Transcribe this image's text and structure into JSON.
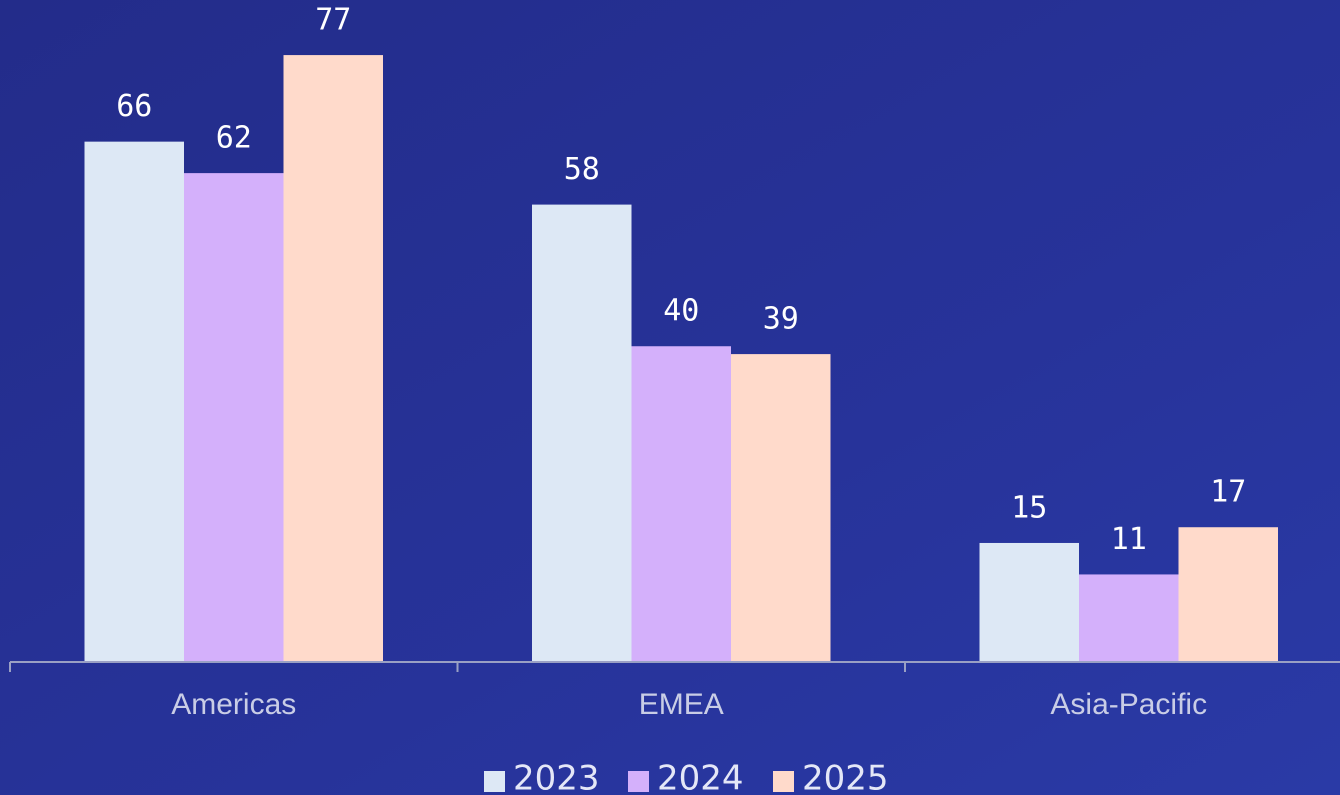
{
  "chart_data": {
    "type": "bar",
    "categories": [
      "Americas",
      "EMEA",
      "Asia-Pacific"
    ],
    "series": [
      {
        "name": "2023",
        "color": "#dde8f5",
        "values": [
          66,
          58,
          15
        ]
      },
      {
        "name": "2024",
        "color": "#d4b0fb",
        "values": [
          62,
          40,
          11
        ]
      },
      {
        "name": "2025",
        "color": "#ffdacb",
        "values": [
          77,
          39,
          17
        ]
      }
    ],
    "ylim": [
      0,
      84
    ]
  }
}
